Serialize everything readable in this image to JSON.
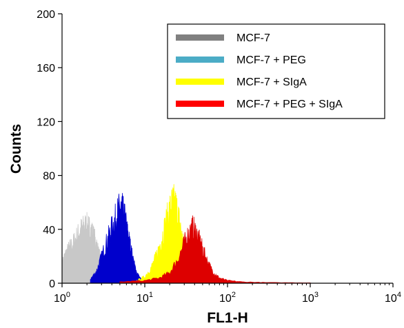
{
  "chart_data": {
    "type": "area",
    "title": "",
    "xlabel": "FL1-H",
    "ylabel": "Counts",
    "x_scale": "log",
    "xlim": [
      1,
      10000
    ],
    "ylim": [
      0,
      200
    ],
    "y_ticks": [
      "0",
      "40",
      "80",
      "120",
      "160",
      "200"
    ],
    "x_ticks": [
      {
        "base": "10",
        "exp": "0"
      },
      {
        "base": "10",
        "exp": "1"
      },
      {
        "base": "10",
        "exp": "2"
      },
      {
        "base": "10",
        "exp": "3"
      },
      {
        "base": "10",
        "exp": "4"
      }
    ],
    "grid": false,
    "legend_position": "top-right",
    "legend": [
      {
        "label": "MCF-7",
        "color": "#808080"
      },
      {
        "label": "MCF-7 + PEG",
        "color": "#4bacc6"
      },
      {
        "label": "MCF-7 + SIgA",
        "color": "#ffff00"
      },
      {
        "label": "MCF-7 + PEG + SIgA",
        "color": "#ff0000"
      }
    ],
    "series": [
      {
        "name": "MCF-7",
        "color": "#c8c8c8",
        "x": [
          1.0,
          1.1,
          1.2,
          1.35,
          1.5,
          1.65,
          1.8,
          1.95,
          2.1,
          2.25,
          2.4,
          2.6,
          2.8,
          3.0,
          3.2,
          3.5
        ],
        "y": [
          16,
          22,
          26,
          30,
          35,
          40,
          42,
          44,
          42,
          40,
          36,
          30,
          22,
          15,
          8,
          3
        ]
      },
      {
        "name": "MCF-7 + PEG",
        "color": "#0000cc",
        "x": [
          2.2,
          2.6,
          3.0,
          3.4,
          3.8,
          4.2,
          4.6,
          5.0,
          5.4,
          5.8,
          6.2,
          6.6,
          7.0,
          7.5,
          8.0,
          9.0,
          10.0
        ],
        "y": [
          3,
          9,
          20,
          30,
          38,
          45,
          52,
          57,
          55,
          48,
          38,
          30,
          22,
          14,
          8,
          3,
          1
        ]
      },
      {
        "name": "MCF-7 + SIgA",
        "color": "#ffff00",
        "x": [
          8.0,
          10.0,
          12.0,
          14.0,
          16.0,
          18.0,
          20.0,
          22.0,
          24.0,
          26.0,
          28.0,
          30.0,
          33.0,
          36.0,
          40.0,
          45.0
        ],
        "y": [
          2,
          5,
          12,
          22,
          34,
          46,
          56,
          62,
          58,
          48,
          36,
          26,
          16,
          8,
          3,
          1
        ]
      },
      {
        "name": "MCF-7 + PEG + SIgA",
        "color": "#dd0000",
        "x": [
          5.0,
          10.0,
          15.0,
          20.0,
          25.0,
          30.0,
          34.0,
          38.0,
          42.0,
          46.0,
          50.0,
          56.0,
          62.0,
          70.0,
          80.0,
          100.0,
          150.0,
          300.0,
          1000.0
        ],
        "y": [
          1,
          2,
          4,
          8,
          18,
          30,
          38,
          42,
          38,
          32,
          26,
          18,
          12,
          7,
          4,
          2,
          1,
          0.5,
          0.3
        ]
      }
    ]
  }
}
